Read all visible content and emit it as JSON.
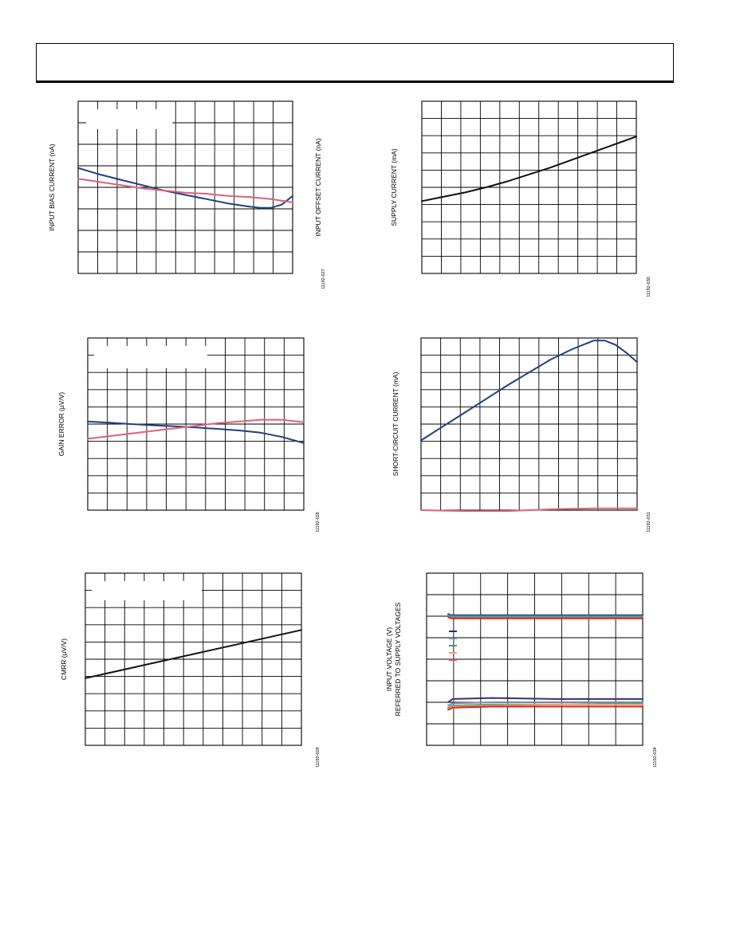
{
  "page": {
    "header_title": ""
  },
  "chart_data": [
    {
      "id": "input-bias-offset",
      "type": "line",
      "ylabel": "INPUT BIAS CURRENT (nA)",
      "ylabel_right": "INPUT OFFSET CURRENT (nA)",
      "figure_id": "11192-027",
      "grid": true,
      "grid_cols": 11,
      "grid_rows": 8,
      "xlim": [
        0,
        1
      ],
      "ylim": [
        0,
        8
      ],
      "legend_box": true,
      "series": [
        {
          "color": "#1f3f80",
          "x": [
            0,
            0.05,
            0.1,
            0.2,
            0.3,
            0.4,
            0.5,
            0.6,
            0.7,
            0.8,
            0.85,
            0.9,
            0.95,
            1.0
          ],
          "y": [
            4.9,
            4.75,
            4.6,
            4.35,
            4.1,
            3.85,
            3.65,
            3.45,
            3.25,
            3.1,
            3.05,
            3.05,
            3.2,
            3.6
          ]
        },
        {
          "color": "#e0607a",
          "x": [
            0,
            0.1,
            0.2,
            0.3,
            0.4,
            0.5,
            0.6,
            0.7,
            0.8,
            0.9,
            1.0
          ],
          "y": [
            4.4,
            4.25,
            4.1,
            3.95,
            3.85,
            3.75,
            3.7,
            3.6,
            3.55,
            3.45,
            3.3
          ]
        }
      ]
    },
    {
      "id": "supply-current",
      "type": "line",
      "ylabel": "SUPPLY CURRENT (mA)",
      "figure_id": "11192-030",
      "grid": true,
      "grid_cols": 11,
      "grid_rows": 10,
      "xlim": [
        0,
        1
      ],
      "ylim": [
        0,
        10
      ],
      "legend_box": false,
      "series": [
        {
          "color": "#111111",
          "x": [
            0,
            0.1,
            0.2,
            0.3,
            0.4,
            0.5,
            0.6,
            0.7,
            0.8,
            0.9,
            1.0
          ],
          "y": [
            4.2,
            4.45,
            4.7,
            5.0,
            5.35,
            5.75,
            6.15,
            6.6,
            7.05,
            7.5,
            7.95
          ]
        }
      ]
    },
    {
      "id": "gain-error",
      "type": "line",
      "ylabel": "GAIN ERROR (µV/V)",
      "figure_id": "11192-028",
      "grid": true,
      "grid_cols": 11,
      "grid_rows": 10,
      "xlim": [
        0,
        1
      ],
      "ylim": [
        0,
        10
      ],
      "legend_box": true,
      "series": [
        {
          "color": "#1f3f80",
          "x": [
            0,
            0.1,
            0.2,
            0.3,
            0.4,
            0.5,
            0.6,
            0.7,
            0.8,
            0.9,
            1.0
          ],
          "y": [
            5.15,
            5.08,
            5.0,
            4.93,
            4.87,
            4.8,
            4.72,
            4.63,
            4.5,
            4.25,
            3.9
          ]
        },
        {
          "color": "#e0607a",
          "x": [
            0,
            0.1,
            0.2,
            0.3,
            0.4,
            0.5,
            0.6,
            0.7,
            0.8,
            0.9,
            1.0
          ],
          "y": [
            4.15,
            4.3,
            4.45,
            4.6,
            4.75,
            4.9,
            5.05,
            5.15,
            5.25,
            5.25,
            5.1
          ]
        }
      ]
    },
    {
      "id": "short-circuit-current",
      "type": "line",
      "ylabel": "SHORT-CIRCUIT CURRENT (mA)",
      "figure_id": "11192-031",
      "grid": true,
      "grid_cols": 11,
      "grid_rows": 10,
      "xlim": [
        0,
        1
      ],
      "ylim": [
        0,
        10
      ],
      "legend_box": false,
      "series": [
        {
          "color": "#1f3f80",
          "x": [
            0,
            0.1,
            0.2,
            0.3,
            0.4,
            0.5,
            0.6,
            0.7,
            0.8,
            0.85,
            0.9,
            0.95,
            1.0
          ],
          "y": [
            4.05,
            4.85,
            5.65,
            6.45,
            7.25,
            8.0,
            8.75,
            9.35,
            9.85,
            9.85,
            9.6,
            9.15,
            8.6
          ]
        },
        {
          "color": "#e0607a",
          "x": [
            0,
            0.2,
            0.4,
            0.6,
            0.8,
            1.0
          ],
          "y": [
            0.0,
            -0.05,
            -0.05,
            0.05,
            0.1,
            0.1
          ]
        }
      ]
    },
    {
      "id": "cmrr",
      "type": "line",
      "ylabel": "CMRR (µV/V)",
      "figure_id": "11192-029",
      "grid": true,
      "grid_cols": 11,
      "grid_rows": 10,
      "xlim": [
        0,
        1
      ],
      "ylim": [
        0,
        10
      ],
      "legend_box": true,
      "series": [
        {
          "color": "#111111",
          "x": [
            0,
            1.0
          ],
          "y": [
            3.9,
            6.7
          ]
        }
      ]
    },
    {
      "id": "input-voltage",
      "type": "line",
      "ylabel": "INPUT VOLTAGE (V)",
      "ylabel_line2": "REFERRED TO SUPPLY VOLTAGES",
      "figure_id": "11192-034",
      "grid": true,
      "grid_cols": 8,
      "grid_rows": 8,
      "xlim": [
        0,
        1
      ],
      "ylim": [
        0,
        8
      ],
      "legend_box": false,
      "legend_swatches": [
        "#2a2a7a",
        "#7a8aa0",
        "#3aa080",
        "#e8a070",
        "#e05080"
      ],
      "series": [
        {
          "color": "#1f3f80",
          "x": [
            0.1,
            0.115,
            0.3,
            0.6,
            1.0
          ],
          "y": [
            6.1,
            6.05,
            6.05,
            6.05,
            6.05
          ]
        },
        {
          "color": "#3aa080",
          "x": [
            0.1,
            0.115,
            0.3,
            0.6,
            1.0
          ],
          "y": [
            6.05,
            6.0,
            6.0,
            6.0,
            6.0
          ]
        },
        {
          "color": "#7a8aa0",
          "x": [
            0.1,
            0.115,
            0.3,
            0.6,
            1.0
          ],
          "y": [
            6.0,
            5.95,
            5.95,
            5.95,
            5.95
          ]
        },
        {
          "color": "#e02020",
          "x": [
            0.1,
            0.115,
            0.3,
            0.6,
            1.0
          ],
          "y": [
            5.95,
            5.9,
            5.9,
            5.9,
            5.9
          ]
        },
        {
          "color": "#3a2a8a",
          "x": [
            0.1,
            0.12,
            0.3,
            0.6,
            1.0
          ],
          "y": [
            2.0,
            2.15,
            2.2,
            2.15,
            2.15
          ]
        },
        {
          "color": "#7a8aa0",
          "x": [
            0.1,
            0.12,
            0.3,
            0.6,
            1.0
          ],
          "y": [
            1.85,
            1.95,
            2.0,
            2.0,
            2.0
          ]
        },
        {
          "color": "#3aa080",
          "x": [
            0.1,
            0.12,
            0.3,
            0.6,
            1.0
          ],
          "y": [
            1.75,
            1.85,
            1.9,
            1.9,
            1.95
          ]
        },
        {
          "color": "#e8a070",
          "x": [
            0.1,
            0.12,
            0.3,
            0.6,
            1.0
          ],
          "y": [
            1.7,
            1.8,
            1.85,
            1.9,
            1.9
          ]
        },
        {
          "color": "#e02020",
          "x": [
            0.1,
            0.12,
            0.3,
            0.6,
            1.0
          ],
          "y": [
            1.65,
            1.75,
            1.8,
            1.8,
            1.8
          ]
        }
      ]
    }
  ]
}
